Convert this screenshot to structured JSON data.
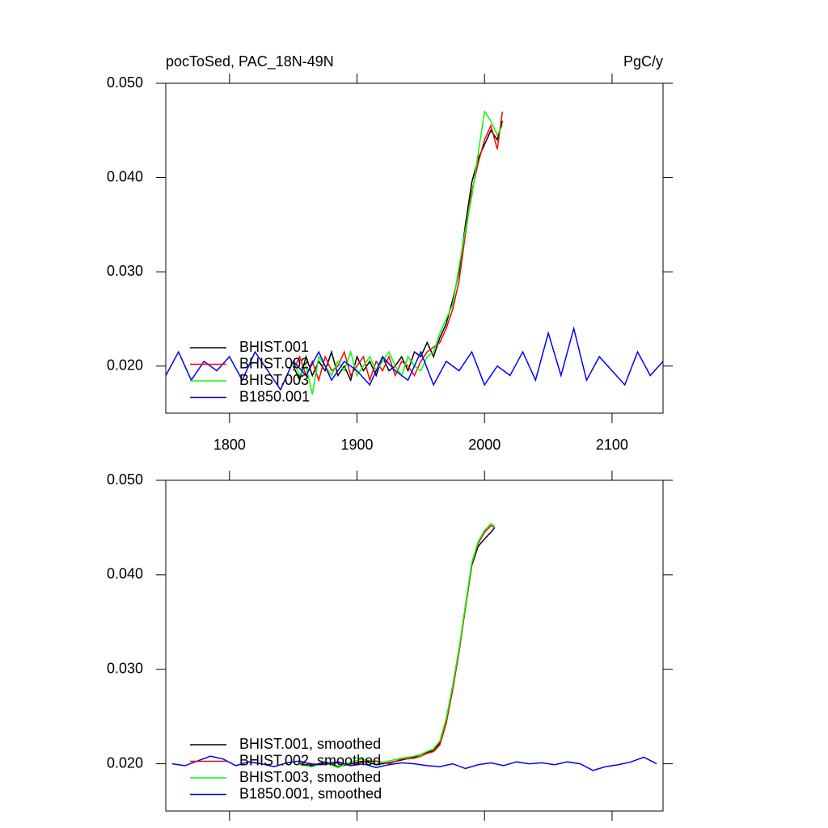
{
  "chart_data": [
    {
      "type": "line",
      "title": "pocToSed, PAC_18N-49N",
      "units": "PgC/y",
      "xlim": [
        1750,
        2140
      ],
      "ylim": [
        0.015,
        0.05
      ],
      "xticks": [
        1800,
        1900,
        2000,
        2100
      ],
      "xtick_labels": true,
      "yticks": [
        {
          "value": 0.02,
          "label": "0.020"
        },
        {
          "value": 0.03,
          "label": "0.030"
        },
        {
          "value": 0.04,
          "label": "0.040"
        },
        {
          "value": 0.05,
          "label": "0.050"
        }
      ],
      "series": [
        {
          "name": "BHIST.001",
          "color": "#000000",
          "x": [
            1850,
            1855,
            1860,
            1865,
            1870,
            1875,
            1880,
            1885,
            1890,
            1895,
            1900,
            1905,
            1910,
            1915,
            1920,
            1925,
            1930,
            1935,
            1940,
            1945,
            1950,
            1955,
            1960,
            1965,
            1970,
            1975,
            1980,
            1985,
            1990,
            1995,
            2000,
            2005,
            2010,
            2014
          ],
          "values": [
            0.02,
            0.0185,
            0.021,
            0.019,
            0.0205,
            0.0195,
            0.0215,
            0.019,
            0.02,
            0.0185,
            0.021,
            0.0195,
            0.0205,
            0.019,
            0.021,
            0.0195,
            0.02,
            0.021,
            0.0195,
            0.0215,
            0.021,
            0.0225,
            0.021,
            0.023,
            0.0245,
            0.027,
            0.03,
            0.035,
            0.0395,
            0.042,
            0.0435,
            0.045,
            0.044,
            0.046
          ]
        },
        {
          "name": "BHIST.002",
          "color": "#ff0000",
          "x": [
            1850,
            1855,
            1860,
            1865,
            1870,
            1875,
            1880,
            1885,
            1890,
            1895,
            1900,
            1905,
            1910,
            1915,
            1920,
            1925,
            1930,
            1935,
            1940,
            1945,
            1950,
            1955,
            1960,
            1965,
            1970,
            1975,
            1980,
            1985,
            1990,
            1995,
            2000,
            2005,
            2010,
            2014
          ],
          "values": [
            0.0195,
            0.021,
            0.019,
            0.0205,
            0.0185,
            0.021,
            0.0195,
            0.02,
            0.0215,
            0.019,
            0.02,
            0.021,
            0.0185,
            0.0205,
            0.0195,
            0.021,
            0.019,
            0.0205,
            0.02,
            0.019,
            0.0205,
            0.0215,
            0.022,
            0.0225,
            0.024,
            0.026,
            0.029,
            0.034,
            0.0385,
            0.0415,
            0.044,
            0.0455,
            0.043,
            0.047
          ]
        },
        {
          "name": "BHIST.003",
          "color": "#00ff00",
          "x": [
            1850,
            1855,
            1860,
            1865,
            1870,
            1875,
            1880,
            1885,
            1890,
            1895,
            1900,
            1905,
            1910,
            1915,
            1920,
            1925,
            1930,
            1935,
            1940,
            1945,
            1950,
            1955,
            1960,
            1965,
            1970,
            1975,
            1980,
            1985,
            1990,
            1995,
            2000,
            2005,
            2010,
            2014
          ],
          "values": [
            0.0205,
            0.019,
            0.02,
            0.017,
            0.021,
            0.02,
            0.019,
            0.0205,
            0.0195,
            0.0215,
            0.019,
            0.02,
            0.021,
            0.0195,
            0.0205,
            0.0215,
            0.02,
            0.019,
            0.021,
            0.02,
            0.0195,
            0.021,
            0.0215,
            0.0235,
            0.025,
            0.0265,
            0.0305,
            0.0345,
            0.038,
            0.0425,
            0.047,
            0.046,
            0.0445,
            0.0455
          ]
        },
        {
          "name": "B1850.001",
          "color": "#0000ff",
          "x": [
            1750,
            1760,
            1770,
            1780,
            1790,
            1800,
            1810,
            1820,
            1830,
            1840,
            1850,
            1860,
            1870,
            1880,
            1890,
            1900,
            1910,
            1920,
            1930,
            1940,
            1950,
            1960,
            1970,
            1980,
            1990,
            2000,
            2010,
            2020,
            2030,
            2040,
            2050,
            2060,
            2070,
            2080,
            2090,
            2100,
            2110,
            2120,
            2130,
            2140
          ],
          "values": [
            0.019,
            0.0215,
            0.0185,
            0.0205,
            0.0195,
            0.021,
            0.0185,
            0.0215,
            0.0195,
            0.0175,
            0.0205,
            0.019,
            0.0215,
            0.0185,
            0.0205,
            0.0195,
            0.018,
            0.021,
            0.0195,
            0.0185,
            0.0215,
            0.018,
            0.0205,
            0.0195,
            0.0215,
            0.018,
            0.02,
            0.019,
            0.0215,
            0.0185,
            0.0235,
            0.019,
            0.024,
            0.0185,
            0.021,
            0.0195,
            0.018,
            0.0215,
            0.019,
            0.0205
          ]
        }
      ]
    },
    {
      "type": "line",
      "xlim": [
        1750,
        2140
      ],
      "ylim": [
        0.015,
        0.05
      ],
      "xticks": [
        1800,
        1900,
        2000,
        2100
      ],
      "xtick_labels": false,
      "yticks": [
        {
          "value": 0.02,
          "label": "0.020"
        },
        {
          "value": 0.03,
          "label": "0.030"
        },
        {
          "value": 0.04,
          "label": "0.040"
        },
        {
          "value": 0.05,
          "label": "0.050"
        }
      ],
      "series": [
        {
          "name": "BHIST.001, smoothed",
          "color": "#000000",
          "x": [
            1855,
            1865,
            1875,
            1885,
            1895,
            1905,
            1915,
            1925,
            1935,
            1945,
            1950,
            1955,
            1960,
            1965,
            1970,
            1975,
            1980,
            1985,
            1990,
            1995,
            2000,
            2005,
            2008
          ],
          "values": [
            0.02,
            0.0198,
            0.0202,
            0.0197,
            0.02,
            0.0203,
            0.0199,
            0.0201,
            0.0204,
            0.0207,
            0.021,
            0.0212,
            0.0214,
            0.0222,
            0.0245,
            0.028,
            0.032,
            0.0365,
            0.041,
            0.043,
            0.0438,
            0.0445,
            0.045
          ]
        },
        {
          "name": "BHIST.002, smoothed",
          "color": "#ff0000",
          "x": [
            1855,
            1865,
            1875,
            1885,
            1895,
            1905,
            1915,
            1925,
            1935,
            1945,
            1950,
            1955,
            1960,
            1965,
            1970,
            1975,
            1980,
            1985,
            1990,
            1995,
            2000,
            2005,
            2008
          ],
          "values": [
            0.0202,
            0.02,
            0.0199,
            0.0201,
            0.0198,
            0.0202,
            0.0203,
            0.02,
            0.0205,
            0.0206,
            0.0208,
            0.0211,
            0.0213,
            0.022,
            0.0243,
            0.0278,
            0.0318,
            0.0365,
            0.0412,
            0.0433,
            0.0445,
            0.0452,
            0.045
          ]
        },
        {
          "name": "BHIST.003, smoothed",
          "color": "#00ff00",
          "x": [
            1855,
            1865,
            1875,
            1885,
            1895,
            1905,
            1915,
            1925,
            1935,
            1945,
            1950,
            1955,
            1960,
            1965,
            1970,
            1975,
            1980,
            1985,
            1990,
            1995,
            2000,
            2005,
            2008
          ],
          "values": [
            0.0199,
            0.0197,
            0.0201,
            0.0196,
            0.0202,
            0.0205,
            0.02,
            0.0203,
            0.0206,
            0.0208,
            0.021,
            0.0213,
            0.0216,
            0.0224,
            0.0248,
            0.0283,
            0.0322,
            0.0368,
            0.0413,
            0.0435,
            0.0447,
            0.0454,
            0.0452
          ]
        },
        {
          "name": "B1850.001, smoothed",
          "color": "#0000ff",
          "x": [
            1755,
            1765,
            1775,
            1785,
            1795,
            1805,
            1815,
            1825,
            1835,
            1845,
            1855,
            1865,
            1875,
            1885,
            1895,
            1905,
            1915,
            1925,
            1935,
            1945,
            1955,
            1965,
            1975,
            1985,
            1995,
            2005,
            2015,
            2025,
            2035,
            2045,
            2055,
            2065,
            2075,
            2085,
            2095,
            2105,
            2115,
            2125,
            2135
          ],
          "values": [
            0.02,
            0.0198,
            0.0203,
            0.0208,
            0.0205,
            0.0198,
            0.0202,
            0.02,
            0.0197,
            0.0201,
            0.0203,
            0.0199,
            0.02,
            0.0202,
            0.0198,
            0.02,
            0.0196,
            0.0199,
            0.0201,
            0.02,
            0.0198,
            0.0197,
            0.02,
            0.0195,
            0.0199,
            0.0201,
            0.0198,
            0.0202,
            0.02,
            0.0201,
            0.0199,
            0.0202,
            0.02,
            0.0193,
            0.0197,
            0.0199,
            0.0202,
            0.0207,
            0.02
          ]
        }
      ]
    }
  ]
}
